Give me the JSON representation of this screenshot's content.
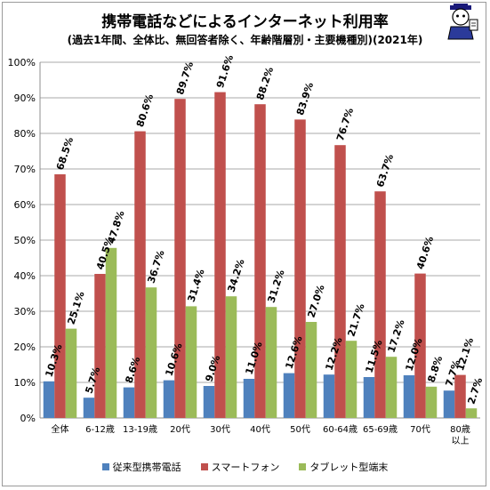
{
  "chart_data": {
    "type": "bar",
    "title": "携帯電話などによるインターネット利用率",
    "subtitle": "(過去1年間、全体比、無回答者除く、年齢階層別・主要機種別)(2021年)",
    "categories": [
      [
        "全体"
      ],
      [
        "6-12歳"
      ],
      [
        "13-19歳"
      ],
      [
        "20代"
      ],
      [
        "30代"
      ],
      [
        "40代"
      ],
      [
        "50代"
      ],
      [
        "60-64歳"
      ],
      [
        "65-69歳"
      ],
      [
        "70代"
      ],
      [
        "80歳",
        "以上"
      ]
    ],
    "series": [
      {
        "name": "従来型携帯電話",
        "color": "#4f81bd",
        "values": [
          10.3,
          5.7,
          8.6,
          10.6,
          9.0,
          11.0,
          12.6,
          12.2,
          11.5,
          12.0,
          7.7
        ]
      },
      {
        "name": "スマートフォン",
        "color": "#c0504d",
        "values": [
          68.5,
          40.5,
          80.6,
          89.7,
          91.6,
          88.2,
          83.9,
          76.7,
          63.7,
          40.6,
          12.1
        ]
      },
      {
        "name": "タブレット型端末",
        "color": "#9bbb59",
        "values": [
          25.1,
          47.8,
          36.7,
          31.4,
          34.2,
          31.2,
          27.0,
          21.7,
          17.2,
          8.8,
          2.7
        ]
      }
    ],
    "ylim": [
      0,
      100
    ],
    "yticks": [
      "0%",
      "10%",
      "20%",
      "30%",
      "40%",
      "50%",
      "60%",
      "70%",
      "80%",
      "90%",
      "100%"
    ],
    "grid": true,
    "legend_position": "bottom"
  }
}
